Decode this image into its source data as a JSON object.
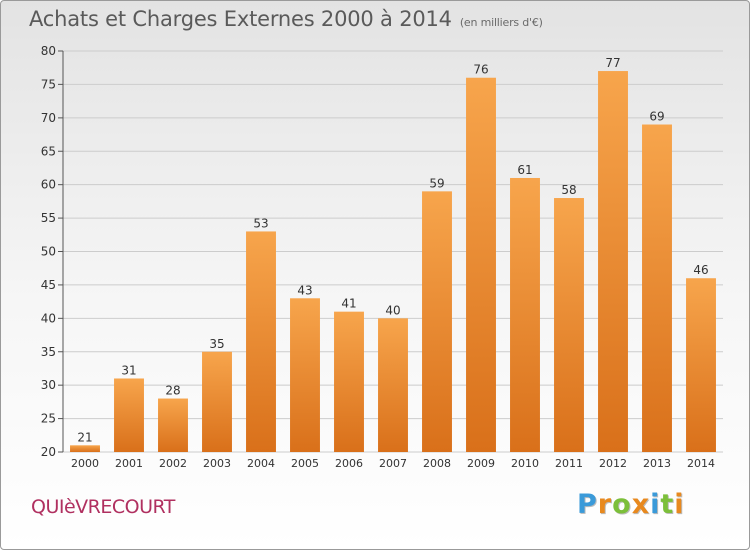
{
  "title": "Achats et Charges Externes 2000 à 2014",
  "unit_note": "(en milliers d'€)",
  "commune": "QUIèVRECOURT",
  "logo": {
    "letters": [
      "P",
      "r",
      "o",
      "x",
      "i",
      "t",
      "i"
    ],
    "colors": [
      "#3a9ad9",
      "#e8891e",
      "#7cbf3a",
      "#e8891e",
      "#3a9ad9",
      "#7cbf3a",
      "#e8891e"
    ]
  },
  "colors": {
    "bar_top": "#f7a54c",
    "bar_bottom": "#d9701a",
    "grid": "#cccccc",
    "axis_text": "#333333"
  },
  "chart_data": {
    "type": "bar",
    "categories": [
      "2000",
      "2001",
      "2002",
      "2003",
      "2004",
      "2005",
      "2006",
      "2007",
      "2008",
      "2009",
      "2010",
      "2011",
      "2012",
      "2013",
      "2014"
    ],
    "values": [
      21,
      31,
      28,
      35,
      53,
      43,
      41,
      40,
      59,
      76,
      61,
      58,
      77,
      69,
      46
    ],
    "ylim": [
      20,
      80
    ],
    "yticks": [
      20,
      25,
      30,
      35,
      40,
      45,
      50,
      55,
      60,
      65,
      70,
      75,
      80
    ],
    "grid": true,
    "xlabel": "",
    "ylabel": ""
  }
}
